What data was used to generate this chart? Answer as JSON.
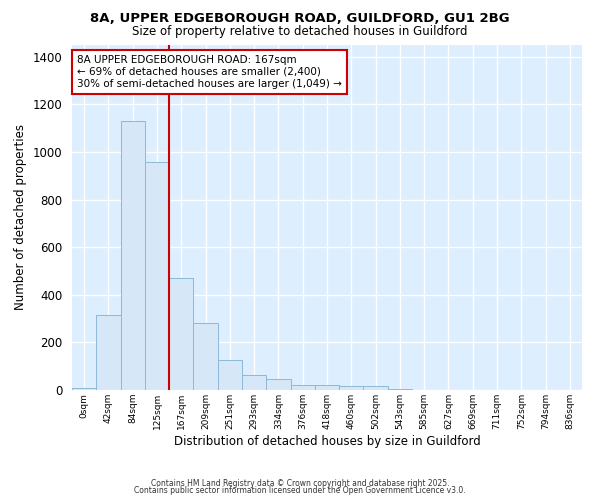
{
  "title1": "8A, UPPER EDGEBOROUGH ROAD, GUILDFORD, GU1 2BG",
  "title2": "Size of property relative to detached houses in Guildford",
  "xlabel": "Distribution of detached houses by size in Guildford",
  "ylabel": "Number of detached properties",
  "bin_labels": [
    "0sqm",
    "42sqm",
    "84sqm",
    "125sqm",
    "167sqm",
    "209sqm",
    "251sqm",
    "293sqm",
    "334sqm",
    "376sqm",
    "418sqm",
    "460sqm",
    "502sqm",
    "543sqm",
    "585sqm",
    "627sqm",
    "669sqm",
    "711sqm",
    "752sqm",
    "794sqm",
    "836sqm"
  ],
  "bar_heights": [
    8,
    315,
    1130,
    960,
    470,
    283,
    128,
    65,
    45,
    20,
    20,
    18,
    15,
    3,
    1,
    0,
    0,
    0,
    0,
    0,
    0
  ],
  "bar_color": "#d6e8f7",
  "bar_edge_color": "#8cb8d8",
  "vline_x_index": 4,
  "vline_color": "#cc0000",
  "ylim": [
    0,
    1450
  ],
  "yticks": [
    0,
    200,
    400,
    600,
    800,
    1000,
    1200,
    1400
  ],
  "annotation_text": "8A UPPER EDGEBOROUGH ROAD: 167sqm\n← 69% of detached houses are smaller (2,400)\n30% of semi-detached houses are larger (1,049) →",
  "annotation_box_color": "#ffffff",
  "annotation_box_edge": "#cc0000",
  "plot_bg_color": "#ddeeff",
  "fig_bg_color": "#ffffff",
  "footer1": "Contains HM Land Registry data © Crown copyright and database right 2025.",
  "footer2": "Contains public sector information licensed under the Open Government Licence v3.0."
}
